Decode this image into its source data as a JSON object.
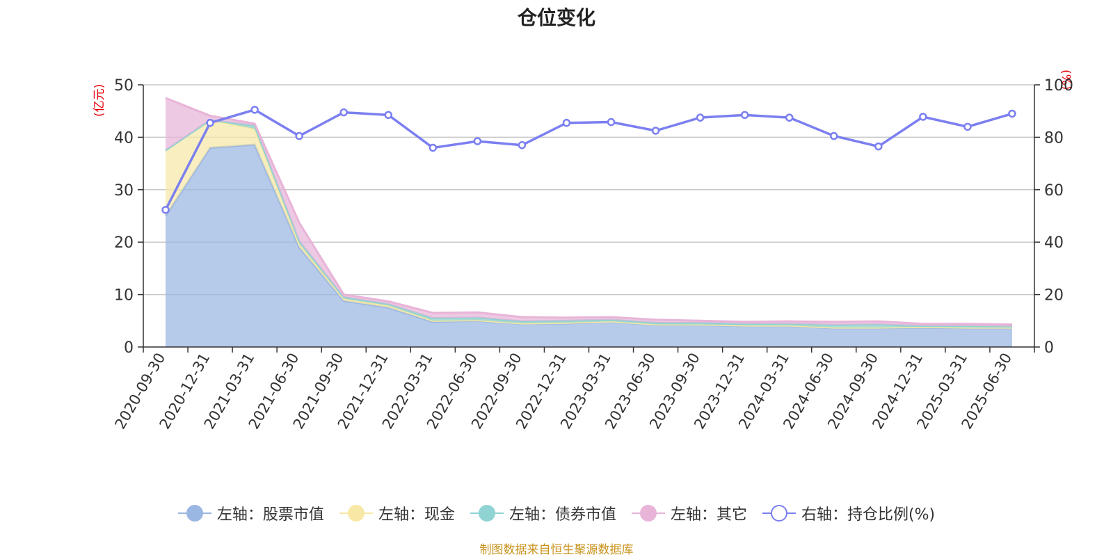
{
  "title": "仓位变化",
  "left_unit": "(亿元)",
  "right_unit": "(%)",
  "source_note": "制图数据来自恒生聚源数据库",
  "colors": {
    "stock": "#9ab6e2",
    "cash": "#f7e8a6",
    "bond": "#8fd3d3",
    "other": "#e8b4d8",
    "ratio": "#7b7ff0",
    "grid": "#c8c8c8",
    "unit_text": "#e8000b",
    "source_text": "#c8921a"
  },
  "legend": [
    {
      "label": "左轴：股票市值",
      "key": "stock",
      "style": "area"
    },
    {
      "label": "左轴：现金",
      "key": "cash",
      "style": "area"
    },
    {
      "label": "左轴：债券市值",
      "key": "bond",
      "style": "area"
    },
    {
      "label": "左轴：其它",
      "key": "other",
      "style": "area"
    },
    {
      "label": "右轴：持仓比例(%)",
      "key": "ratio",
      "style": "line"
    }
  ],
  "chart_data": {
    "type": "area",
    "title": "仓位变化",
    "x": [
      "2020-09-30",
      "2020-12-31",
      "2021-03-31",
      "2021-06-30",
      "2021-09-30",
      "2021-12-31",
      "2022-03-31",
      "2022-06-30",
      "2022-09-30",
      "2022-12-31",
      "2023-03-31",
      "2023-06-30",
      "2023-09-30",
      "2023-12-31",
      "2024-03-31",
      "2024-06-30",
      "2024-09-30",
      "2024-12-31",
      "2025-03-31",
      "2025-06-30"
    ],
    "y_left": {
      "label": "(亿元)",
      "range": [
        0,
        50
      ],
      "ticks": [
        0,
        10,
        20,
        30,
        40,
        50
      ]
    },
    "y_right": {
      "label": "(%)",
      "range": [
        0,
        100
      ],
      "ticks": [
        0,
        20,
        40,
        60,
        80,
        100
      ]
    },
    "stacked": true,
    "grid": true,
    "legend_position": "bottom",
    "series": [
      {
        "name": "左轴：股票市值",
        "key": "stock",
        "axis": "left",
        "values": [
          25.0,
          38.0,
          38.6,
          19.0,
          8.8,
          7.5,
          4.8,
          5.0,
          4.4,
          4.5,
          4.8,
          4.2,
          4.2,
          4.0,
          4.0,
          3.6,
          3.6,
          3.7,
          3.6,
          3.6
        ]
      },
      {
        "name": "左轴：现金",
        "key": "cash",
        "axis": "left",
        "values": [
          12.5,
          5.3,
          3.0,
          0.7,
          0.4,
          0.4,
          0.2,
          0.1,
          0.1,
          0.1,
          0.1,
          0.1,
          0.1,
          0.1,
          0.1,
          0.1,
          0.1,
          0.1,
          0.1,
          0.1
        ]
      },
      {
        "name": "左轴：债券市值",
        "key": "bond",
        "axis": "left",
        "values": [
          0.0,
          0.0,
          0.6,
          0.5,
          0.3,
          0.3,
          0.5,
          0.5,
          0.4,
          0.4,
          0.3,
          0.3,
          0.3,
          0.3,
          0.3,
          0.5,
          0.6,
          0.2,
          0.3,
          0.2
        ]
      },
      {
        "name": "左轴：其它",
        "key": "other",
        "axis": "left",
        "values": [
          10.0,
          0.8,
          0.4,
          3.5,
          0.5,
          0.5,
          1.0,
          1.0,
          0.8,
          0.6,
          0.5,
          0.6,
          0.4,
          0.4,
          0.5,
          0.6,
          0.6,
          0.4,
          0.4,
          0.4
        ]
      },
      {
        "name": "右轴：持仓比例(%)",
        "key": "ratio",
        "axis": "right",
        "type": "line",
        "values": [
          52.3,
          85.5,
          90.5,
          80.5,
          89.5,
          88.5,
          76.0,
          78.5,
          77.0,
          85.5,
          85.8,
          82.5,
          87.5,
          88.5,
          87.5,
          80.5,
          76.5,
          87.8,
          84.0,
          89.0
        ]
      }
    ]
  }
}
